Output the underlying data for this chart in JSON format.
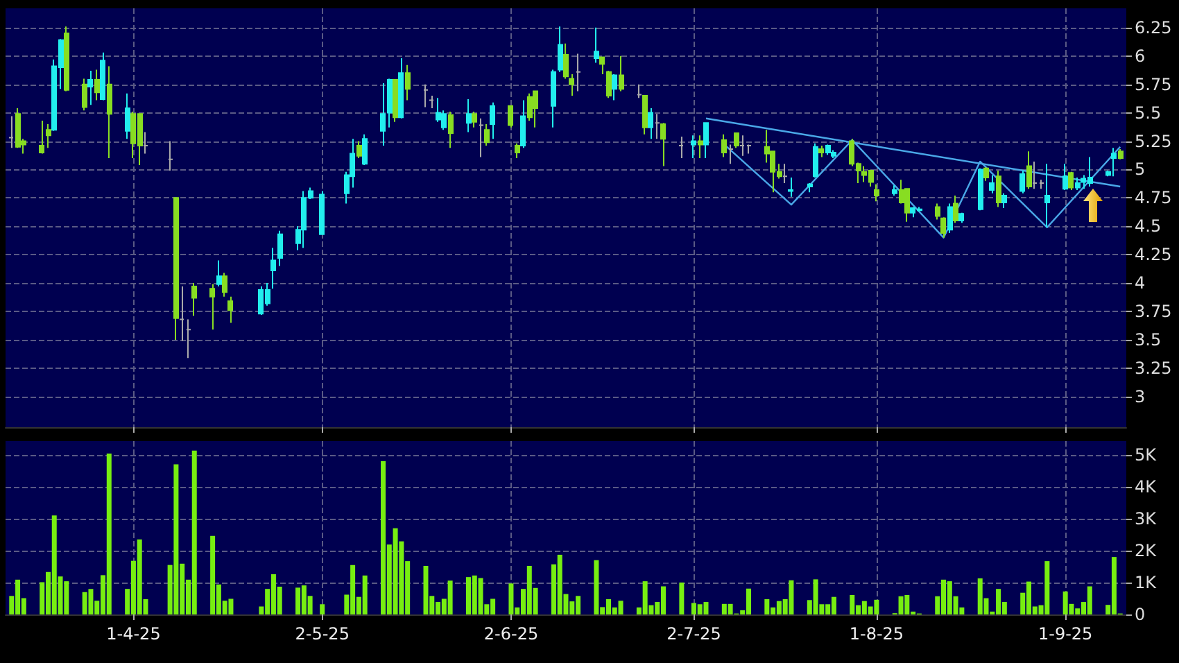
{
  "chart_data": [
    {
      "type": "candlestick",
      "tick_labels": "y",
      "grid": true,
      "xlim": [
        "2025-03-11",
        "2025-09-11"
      ],
      "x": [
        "2025-03-12",
        "2025-03-13",
        "2025-03-14",
        "2025-03-17",
        "2025-03-18",
        "2025-03-19",
        "2025-03-20",
        "2025-03-21",
        "2025-03-24",
        "2025-03-25",
        "2025-03-26",
        "2025-03-27",
        "2025-03-28",
        "2025-03-31",
        "2025-04-01",
        "2025-04-02",
        "2025-04-03",
        "2025-04-07",
        "2025-04-08",
        "2025-04-09",
        "2025-04-10",
        "2025-04-11",
        "2025-04-14",
        "2025-04-15",
        "2025-04-16",
        "2025-04-17",
        "2025-04-22",
        "2025-04-23",
        "2025-04-24",
        "2025-04-25",
        "2025-04-28",
        "2025-04-29",
        "2025-04-30",
        "2025-05-02",
        "2025-05-06",
        "2025-05-07",
        "2025-05-08",
        "2025-05-09",
        "2025-05-12",
        "2025-05-13",
        "2025-05-14",
        "2025-05-15",
        "2025-05-16",
        "2025-05-19",
        "2025-05-20",
        "2025-05-21",
        "2025-05-22",
        "2025-05-23",
        "2025-05-26",
        "2025-05-27",
        "2025-05-28",
        "2025-05-29",
        "2025-05-30",
        "2025-06-02",
        "2025-06-03",
        "2025-06-04",
        "2025-06-05",
        "2025-06-06",
        "2025-06-09",
        "2025-06-10",
        "2025-06-11",
        "2025-06-12",
        "2025-06-13",
        "2025-06-16",
        "2025-06-17",
        "2025-06-18",
        "2025-06-19",
        "2025-06-20",
        "2025-06-23",
        "2025-06-24",
        "2025-06-25",
        "2025-06-26",
        "2025-06-27",
        "2025-06-30",
        "2025-07-02",
        "2025-07-03",
        "2025-07-04",
        "2025-07-07",
        "2025-07-08",
        "2025-07-09",
        "2025-07-10",
        "2025-07-11",
        "2025-07-14",
        "2025-07-15",
        "2025-07-16",
        "2025-07-17",
        "2025-07-18",
        "2025-07-21",
        "2025-07-22",
        "2025-07-23",
        "2025-07-24",
        "2025-07-25",
        "2025-07-28",
        "2025-07-29",
        "2025-07-30",
        "2025-07-31",
        "2025-08-01",
        "2025-08-04",
        "2025-08-05",
        "2025-08-06",
        "2025-08-07",
        "2025-08-08",
        "2025-08-11",
        "2025-08-12",
        "2025-08-13",
        "2025-08-14",
        "2025-08-15",
        "2025-08-18",
        "2025-08-19",
        "2025-08-20",
        "2025-08-21",
        "2025-08-22",
        "2025-08-25",
        "2025-08-26",
        "2025-08-27",
        "2025-08-28",
        "2025-08-29",
        "2025-09-01",
        "2025-09-02",
        "2025-09-03",
        "2025-09-04",
        "2025-09-05",
        "2025-09-08",
        "2025-09-09",
        "2025-09-10"
      ],
      "ohlc": [
        [
          5.28,
          5.47,
          5.19,
          5.28
        ],
        [
          5.49,
          5.54,
          5.19,
          5.2
        ],
        [
          5.25,
          5.27,
          5.14,
          5.22
        ],
        [
          5.21,
          5.43,
          5.14,
          5.15
        ],
        [
          5.35,
          5.4,
          5.19,
          5.3
        ],
        [
          5.35,
          5.97,
          5.34,
          5.91
        ],
        [
          5.9,
          6.15,
          5.71,
          6.14
        ],
        [
          6.2,
          6.26,
          5.69,
          5.7
        ],
        [
          5.75,
          5.8,
          5.52,
          5.55
        ],
        [
          5.73,
          5.87,
          5.57,
          5.79
        ],
        [
          5.79,
          5.88,
          5.61,
          5.68
        ],
        [
          5.62,
          6.03,
          5.61,
          5.96
        ],
        [
          5.75,
          5.91,
          5.1,
          5.49
        ],
        [
          5.34,
          5.67,
          5.27,
          5.54
        ],
        [
          5.49,
          5.51,
          5.1,
          5.23
        ],
        [
          5.49,
          5.49,
          5.04,
          5.21
        ],
        [
          5.21,
          5.33,
          5.14,
          5.21
        ],
        [
          5.09,
          5.25,
          4.99,
          5.09
        ],
        [
          4.75,
          4.75,
          3.5,
          3.69
        ],
        [
          3.68,
          3.97,
          3.49,
          3.68
        ],
        [
          3.59,
          3.68,
          3.34,
          3.59
        ],
        [
          3.97,
          4,
          3.71,
          3.87
        ],
        [
          3.95,
          3.99,
          3.59,
          3.88
        ],
        [
          3.99,
          4.2,
          3.97,
          4.06
        ],
        [
          4.06,
          4.09,
          3.88,
          3.92
        ],
        [
          3.84,
          3.88,
          3.65,
          3.76
        ],
        [
          3.73,
          3.97,
          3.72,
          3.94
        ],
        [
          3.82,
          4,
          3.8,
          3.94
        ],
        [
          4.11,
          4.31,
          3.95,
          4.2
        ],
        [
          4.22,
          4.46,
          4.15,
          4.43
        ],
        [
          4.35,
          4.5,
          4.29,
          4.47
        ],
        [
          4.47,
          4.81,
          4.31,
          4.75
        ],
        [
          4.75,
          4.84,
          4.74,
          4.81
        ],
        [
          4.43,
          4.81,
          4.43,
          4.78
        ],
        [
          4.79,
          4.98,
          4.7,
          4.95
        ],
        [
          4.94,
          5.27,
          4.84,
          5.14
        ],
        [
          5.21,
          5.25,
          5.1,
          5.12
        ],
        [
          5.05,
          5.31,
          5.04,
          5.27
        ],
        [
          5.34,
          5.76,
          5.21,
          5.49
        ],
        [
          5.5,
          5.8,
          5.37,
          5.79
        ],
        [
          5.79,
          5.79,
          5.42,
          5.46
        ],
        [
          5.46,
          5.98,
          5.45,
          5.85
        ],
        [
          5.85,
          5.92,
          5.61,
          5.71
        ],
        [
          5.7,
          5.75,
          5.55,
          5.7
        ],
        [
          5.61,
          5.65,
          5.54,
          5.61
        ],
        [
          5.44,
          5.63,
          5.42,
          5.5
        ],
        [
          5.37,
          5.52,
          5.35,
          5.49
        ],
        [
          5.48,
          5.51,
          5.19,
          5.32
        ],
        [
          5.41,
          5.62,
          5.33,
          5.49
        ],
        [
          5.49,
          5.51,
          5.37,
          5.42
        ],
        [
          5.39,
          5.45,
          5.11,
          5.39
        ],
        [
          5.35,
          5.4,
          5.21,
          5.24
        ],
        [
          5.4,
          5.59,
          5.27,
          5.56
        ],
        [
          5.56,
          5.56,
          5.37,
          5.39
        ],
        [
          5.21,
          5.23,
          5.1,
          5.15
        ],
        [
          5.21,
          5.61,
          5.19,
          5.47
        ],
        [
          5.64,
          5.67,
          5.43,
          5.46
        ],
        [
          5.69,
          5.69,
          5.37,
          5.54
        ],
        [
          5.56,
          5.88,
          5.37,
          5.86
        ],
        [
          5.88,
          6.26,
          5.86,
          6.1
        ],
        [
          6.01,
          6.11,
          5.8,
          5.82
        ],
        [
          5.8,
          5.84,
          5.65,
          5.75
        ],
        [
          5.86,
          6.02,
          5.69,
          5.86
        ],
        [
          5.98,
          6.25,
          5.94,
          6.04
        ],
        [
          5.99,
          5.99,
          5.84,
          5.93
        ],
        [
          5.86,
          5.87,
          5.63,
          5.65
        ],
        [
          5.71,
          5.84,
          5.61,
          5.83
        ],
        [
          5.83,
          6,
          5.69,
          5.71
        ],
        [
          5.66,
          5.75,
          5.63,
          5.66
        ],
        [
          5.65,
          5.65,
          5.31,
          5.37
        ],
        [
          5.37,
          5.54,
          5.27,
          5.5
        ],
        [
          5.41,
          5.49,
          5.27,
          5.41
        ],
        [
          5.4,
          5.41,
          5.03,
          5.27
        ],
        [
          5.21,
          5.29,
          5.1,
          5.21
        ],
        [
          5.22,
          5.3,
          5.1,
          5.25
        ],
        [
          5.25,
          5.3,
          5.1,
          5.22
        ],
        [
          5.22,
          5.41,
          5.1,
          5.41
        ],
        [
          5.26,
          5.31,
          5.11,
          5.15
        ],
        [
          5.18,
          5.22,
          5.05,
          5.18
        ],
        [
          5.32,
          5.32,
          5.19,
          5.21
        ],
        [
          5.21,
          5.3,
          5.12,
          5.21
        ],
        [
          5.21,
          5.22,
          5.14,
          5.21
        ],
        [
          5.2,
          5.35,
          5.06,
          5.14
        ],
        [
          5.16,
          5.16,
          4.8,
          4.98
        ],
        [
          4.98,
          5.05,
          4.92,
          4.94
        ],
        [
          4.94,
          5.05,
          4.88,
          4.94
        ],
        [
          4.81,
          4.93,
          4.76,
          4.82
        ],
        [
          4.85,
          4.88,
          4.8,
          4.87
        ],
        [
          4.94,
          5.23,
          4.93,
          5.2
        ],
        [
          5.18,
          5.21,
          5.11,
          5.15
        ],
        [
          5.15,
          5.22,
          5.13,
          5.21
        ],
        [
          5.12,
          5.17,
          5.1,
          5.15
        ],
        [
          5.25,
          5.27,
          5.03,
          5.05
        ],
        [
          5.05,
          5.06,
          4.88,
          4.99
        ],
        [
          4.98,
          5.03,
          4.89,
          4.95
        ],
        [
          4.99,
          5,
          4.85,
          4.89
        ],
        [
          4.82,
          4.87,
          4.72,
          4.77
        ],
        [
          4.79,
          4.86,
          4.77,
          4.82
        ],
        [
          4.82,
          4.91,
          4.7,
          4.71
        ],
        [
          4.83,
          4.83,
          4.54,
          4.62
        ],
        [
          4.62,
          4.67,
          4.58,
          4.66
        ],
        [
          4.64,
          4.67,
          4.63,
          4.65
        ],
        [
          4.67,
          4.7,
          4.56,
          4.59
        ],
        [
          4.57,
          4.58,
          4.4,
          4.44
        ],
        [
          4.47,
          4.7,
          4.44,
          4.67
        ],
        [
          4.7,
          4.77,
          4.53,
          4.55
        ],
        [
          4.55,
          4.62,
          4.53,
          4.61
        ],
        [
          4.65,
          5.01,
          4.64,
          5
        ],
        [
          5.01,
          5.02,
          4.9,
          4.93
        ],
        [
          4.82,
          4.95,
          4.79,
          4.88
        ],
        [
          4.94,
          4.99,
          4.67,
          4.71
        ],
        [
          4.71,
          4.79,
          4.66,
          4.77
        ],
        [
          4.81,
          4.99,
          4.79,
          4.96
        ],
        [
          5.03,
          5.16,
          4.83,
          4.85
        ],
        [
          4.88,
          5.07,
          4.83,
          4.88
        ],
        [
          4.88,
          4.91,
          4.83,
          4.88
        ],
        [
          4.71,
          5.05,
          4.49,
          4.77
        ],
        [
          4.83,
          5.05,
          4.82,
          4.94
        ],
        [
          4.97,
          4.98,
          4.82,
          4.84
        ],
        [
          4.84,
          4.93,
          4.82,
          4.88
        ],
        [
          4.89,
          4.95,
          4.83,
          4.92
        ],
        [
          4.88,
          5.11,
          4.85,
          4.93
        ],
        [
          4.95,
          4.99,
          4.94,
          4.98
        ],
        [
          5.1,
          5.19,
          4.94,
          5.14
        ],
        [
          5.16,
          5.18,
          5.09,
          5.1
        ]
      ],
      "colors": [
        "#aaaaaa",
        "#88dd22",
        "#88dd22",
        "#88dd22",
        "#88dd22",
        "#22eeee",
        "#22eeee",
        "#88dd22",
        "#88dd22",
        "#22eeee",
        "#88dd22",
        "#22eeee",
        "#88dd22",
        "#22eeee",
        "#88dd22",
        "#88dd22",
        "#aaaaaa",
        "#aaaaaa",
        "#88dd22",
        "#aaaaaa",
        "#aaaaaa",
        "#88dd22",
        "#88dd22",
        "#22eeee",
        "#88dd22",
        "#88dd22",
        "#22eeee",
        "#22eeee",
        "#22eeee",
        "#22eeee",
        "#22eeee",
        "#22eeee",
        "#22eeee",
        "#22eeee",
        "#22eeee",
        "#22eeee",
        "#88dd22",
        "#22eeee",
        "#22eeee",
        "#22eeee",
        "#88dd22",
        "#22eeee",
        "#88dd22",
        "#aaaaaa",
        "#aaaaaa",
        "#22eeee",
        "#22eeee",
        "#88dd22",
        "#22eeee",
        "#88dd22",
        "#aaaaaa",
        "#88dd22",
        "#22eeee",
        "#88dd22",
        "#88dd22",
        "#22eeee",
        "#88dd22",
        "#88dd22",
        "#22eeee",
        "#22eeee",
        "#88dd22",
        "#88dd22",
        "#aaaaaa",
        "#22eeee",
        "#88dd22",
        "#88dd22",
        "#22eeee",
        "#88dd22",
        "#aaaaaa",
        "#88dd22",
        "#22eeee",
        "#aaaaaa",
        "#88dd22",
        "#aaaaaa",
        "#22eeee",
        "#88dd22",
        "#22eeee",
        "#88dd22",
        "#aaaaaa",
        "#88dd22",
        "#aaaaaa",
        "#aaaaaa",
        "#88dd22",
        "#88dd22",
        "#88dd22",
        "#aaaaaa",
        "#22eeee",
        "#22eeee",
        "#22eeee",
        "#88dd22",
        "#22eeee",
        "#22eeee",
        "#88dd22",
        "#88dd22",
        "#88dd22",
        "#88dd22",
        "#88dd22",
        "#22eeee",
        "#88dd22",
        "#88dd22",
        "#22eeee",
        "#22eeee",
        "#88dd22",
        "#88dd22",
        "#22eeee",
        "#88dd22",
        "#22eeee",
        "#22eeee",
        "#88dd22",
        "#22eeee",
        "#88dd22",
        "#22eeee",
        "#22eeee",
        "#88dd22",
        "#aaaaaa",
        "#aaaaaa",
        "#22eeee",
        "#22eeee",
        "#88dd22",
        "#22eeee",
        "#22eeee",
        "#22eeee",
        "#22eeee",
        "#22eeee",
        "#88dd22"
      ],
      "series": [
        {
          "type": "line",
          "color": "#4aa8e8",
          "x": [
            "2025-07-04",
            "2025-09-10"
          ],
          "values": [
            5.45,
            4.85
          ]
        },
        {
          "type": "line",
          "color": "#4aa8e8",
          "x": [
            "2025-07-07",
            "2025-07-18",
            "2025-07-28",
            "2025-08-12",
            "2025-08-18",
            "2025-08-29",
            "2025-09-10"
          ],
          "values": [
            5.22,
            4.69,
            5.26,
            4.4,
            5.07,
            4.49,
            5.2
          ]
        }
      ],
      "ylim": [
        2.73,
        6.42
      ],
      "yticks": [
        3,
        3.25,
        3.5,
        3.75,
        4,
        4.25,
        4.5,
        4.75,
        5,
        5.25,
        5.5,
        5.75,
        6,
        6.25
      ],
      "xticks": [
        {
          "value": "2025-04-01",
          "label": null
        },
        {
          "value": "2025-05-02",
          "label": null
        },
        {
          "value": "2025-06-02",
          "label": null
        },
        {
          "value": "2025-07-02",
          "label": null
        },
        {
          "value": "2025-08-01",
          "label": null
        },
        {
          "value": "2025-09-01",
          "label": null
        }
      ]
    },
    {
      "type": "bar",
      "grid": true,
      "color": "#77ee11",
      "xlim": [
        "2025-03-11",
        "2025-09-11"
      ],
      "x": [
        "2025-03-12",
        "2025-03-13",
        "2025-03-14",
        "2025-03-17",
        "2025-03-18",
        "2025-03-19",
        "2025-03-20",
        "2025-03-21",
        "2025-03-24",
        "2025-03-25",
        "2025-03-26",
        "2025-03-27",
        "2025-03-28",
        "2025-03-31",
        "2025-04-01",
        "2025-04-02",
        "2025-04-03",
        "2025-04-07",
        "2025-04-08",
        "2025-04-09",
        "2025-04-10",
        "2025-04-11",
        "2025-04-14",
        "2025-04-15",
        "2025-04-16",
        "2025-04-17",
        "2025-04-22",
        "2025-04-23",
        "2025-04-24",
        "2025-04-25",
        "2025-04-28",
        "2025-04-29",
        "2025-04-30",
        "2025-05-02",
        "2025-05-06",
        "2025-05-07",
        "2025-05-08",
        "2025-05-09",
        "2025-05-12",
        "2025-05-13",
        "2025-05-14",
        "2025-05-15",
        "2025-05-16",
        "2025-05-19",
        "2025-05-20",
        "2025-05-21",
        "2025-05-22",
        "2025-05-23",
        "2025-05-26",
        "2025-05-27",
        "2025-05-28",
        "2025-05-29",
        "2025-05-30",
        "2025-06-02",
        "2025-06-03",
        "2025-06-04",
        "2025-06-05",
        "2025-06-06",
        "2025-06-09",
        "2025-06-10",
        "2025-06-11",
        "2025-06-12",
        "2025-06-13",
        "2025-06-16",
        "2025-06-17",
        "2025-06-18",
        "2025-06-19",
        "2025-06-20",
        "2025-06-23",
        "2025-06-24",
        "2025-06-25",
        "2025-06-26",
        "2025-06-27",
        "2025-06-30",
        "2025-07-02",
        "2025-07-03",
        "2025-07-04",
        "2025-07-07",
        "2025-07-08",
        "2025-07-09",
        "2025-07-10",
        "2025-07-11",
        "2025-07-14",
        "2025-07-15",
        "2025-07-16",
        "2025-07-17",
        "2025-07-18",
        "2025-07-21",
        "2025-07-22",
        "2025-07-23",
        "2025-07-24",
        "2025-07-25",
        "2025-07-28",
        "2025-07-29",
        "2025-07-30",
        "2025-07-31",
        "2025-08-01",
        "2025-08-04",
        "2025-08-05",
        "2025-08-06",
        "2025-08-07",
        "2025-08-08",
        "2025-08-11",
        "2025-08-12",
        "2025-08-13",
        "2025-08-14",
        "2025-08-15",
        "2025-08-18",
        "2025-08-19",
        "2025-08-20",
        "2025-08-21",
        "2025-08-22",
        "2025-08-25",
        "2025-08-26",
        "2025-08-27",
        "2025-08-28",
        "2025-08-29",
        "2025-09-01",
        "2025-09-02",
        "2025-09-03",
        "2025-09-04",
        "2025-09-05",
        "2025-09-08",
        "2025-09-09",
        "2025-09-10"
      ],
      "values": [
        580,
        1090,
        510,
        1010,
        1330,
        3100,
        1190,
        1040,
        700,
        800,
        430,
        1230,
        5040,
        800,
        1680,
        2350,
        480,
        1550,
        4700,
        1590,
        1090,
        5130,
        2460,
        940,
        430,
        490,
        250,
        800,
        1260,
        870,
        840,
        910,
        580,
        320,
        620,
        1550,
        550,
        1220,
        4800,
        2190,
        2700,
        2290,
        1670,
        1520,
        580,
        390,
        490,
        1060,
        1170,
        1220,
        1140,
        320,
        490,
        970,
        220,
        800,
        1520,
        830,
        1570,
        1870,
        640,
        410,
        580,
        1700,
        230,
        480,
        220,
        430,
        220,
        1040,
        290,
        390,
        880,
        1000,
        360,
        320,
        390,
        330,
        330,
        30,
        130,
        810,
        480,
        220,
        420,
        480,
        1070,
        450,
        1100,
        320,
        320,
        550,
        610,
        290,
        420,
        250,
        460,
        40,
        570,
        610,
        90,
        30,
        570,
        1090,
        1040,
        570,
        220,
        1130,
        510,
        90,
        800,
        390,
        680,
        1030,
        250,
        290,
        1670,
        720,
        330,
        190,
        390,
        880,
        300,
        1800,
        30
      ],
      "ylim": [
        0,
        5430
      ],
      "yticks": [
        0,
        {
          "value": 1000,
          "label": "1K"
        },
        {
          "value": 2000,
          "label": "2K"
        },
        {
          "value": 3000,
          "label": "3K"
        },
        {
          "value": 4000,
          "label": "4K"
        },
        {
          "value": 5000,
          "label": "5K"
        }
      ],
      "xticks": [
        {
          "value": "2025-04-01",
          "label": "1-4-25"
        },
        {
          "value": "2025-05-02",
          "label": "2-5-25"
        },
        {
          "value": "2025-06-02",
          "label": "2-6-25"
        },
        {
          "value": "2025-07-02",
          "label": "2-7-25"
        },
        {
          "value": "2025-08-01",
          "label": "1-8-25"
        },
        {
          "value": "2025-09-01",
          "label": "1-9-25"
        }
      ]
    }
  ]
}
